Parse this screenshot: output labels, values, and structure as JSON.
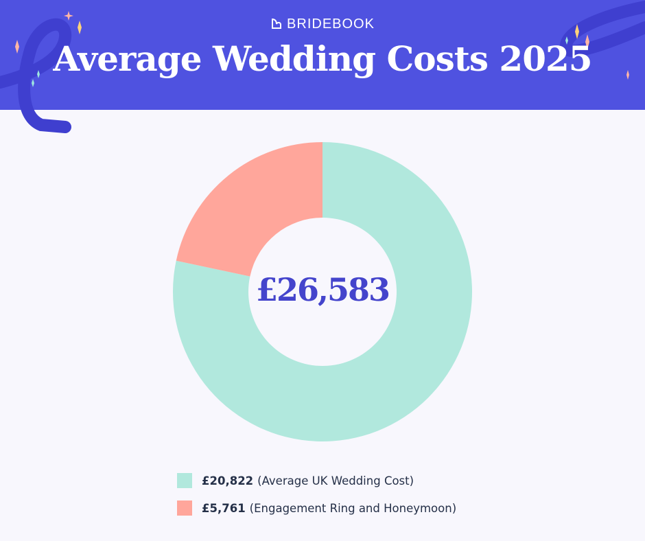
{
  "brand": "BRIDEBOOK",
  "title": "Average Wedding Costs 2025",
  "chart_data": {
    "type": "pie",
    "variant": "donut",
    "center_label": "£26,583",
    "total": 26583,
    "series": [
      {
        "name": "Average UK Wedding Cost",
        "value": 20822,
        "value_label": "£20,822",
        "color": "#b1e8dd"
      },
      {
        "name": "Engagement Ring and Honeymoon",
        "value": 5761,
        "value_label": "£5,761",
        "color": "#ffa69b"
      }
    ],
    "start_angle": "top, clockwise",
    "legend_position": "bottom"
  },
  "colors": {
    "header": "#4f52e0",
    "background": "#f8f7fd",
    "center_text": "#4444cc"
  }
}
